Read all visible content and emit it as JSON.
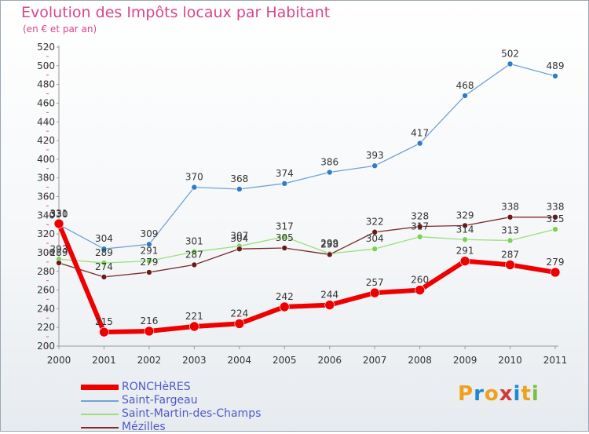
{
  "header": {
    "title": "Evolution des Impôts locaux par Habitant",
    "subtitle": "(en € et par an)"
  },
  "logo": {
    "text": "Proxiti",
    "colors": [
      "#f0a01e",
      "#1e88d0",
      "#f0a01e",
      "#d03c3c",
      "#1e88d0",
      "#f0a01e",
      "#7ac143"
    ]
  },
  "chart_data": {
    "type": "line",
    "title": "Evolution des Impôts locaux par Habitant",
    "subtitle": "(en € et par an)",
    "xlabel": "",
    "ylabel": "",
    "x": [
      "2000",
      "2001",
      "2002",
      "2003",
      "2004",
      "2005",
      "2006",
      "2007",
      "2008",
      "2009",
      "2010",
      "2011"
    ],
    "ylim": [
      200,
      520
    ],
    "yticks": [
      200,
      220,
      240,
      260,
      280,
      300,
      320,
      340,
      360,
      380,
      400,
      420,
      440,
      460,
      480,
      500,
      520
    ],
    "grid": false,
    "legend_position": "bottom-left",
    "series": [
      {
        "name": "RONCHèRES",
        "values": [
          331,
          215,
          216,
          221,
          224,
          242,
          244,
          257,
          260,
          291,
          287,
          279
        ],
        "color": "#ee0000",
        "width": 6,
        "marker_color": "#ee0000"
      },
      {
        "name": "Saint-Fargeau",
        "values": [
          330,
          304,
          309,
          370,
          368,
          374,
          386,
          393,
          417,
          468,
          502,
          489
        ],
        "color": "#6fa3d6",
        "width": 1.3,
        "marker_color": "#2f7bc4"
      },
      {
        "name": "Saint-Martin-des-Champs",
        "values": [
          293,
          289,
          291,
          301,
          307,
          317,
          299,
          304,
          317,
          314,
          313,
          325
        ],
        "color": "#99e07a",
        "width": 1.3,
        "marker_color": "#7ad152"
      },
      {
        "name": "Mézilles",
        "values": [
          289,
          274,
          279,
          287,
          304,
          305,
          298,
          322,
          328,
          329,
          338,
          338
        ],
        "color": "#7a2b2b",
        "width": 1.3,
        "marker_color": "#6a1a1a"
      }
    ]
  }
}
